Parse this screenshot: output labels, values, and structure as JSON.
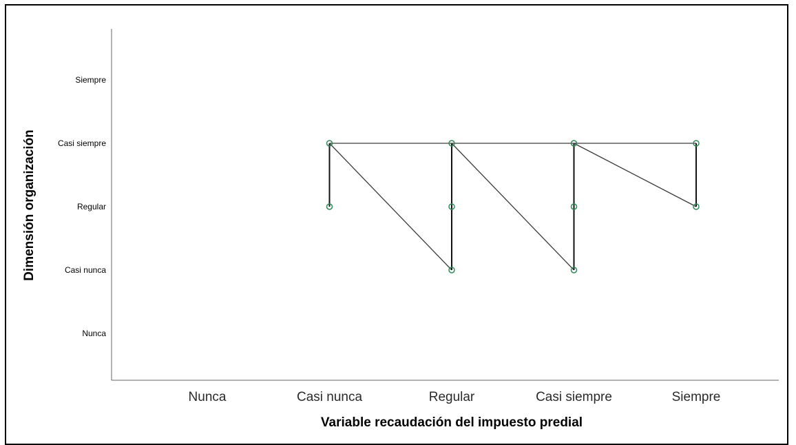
{
  "chart_data": {
    "type": "line",
    "xlabel": "Variable recaudación del impuesto predial",
    "ylabel": "Dimensión organización",
    "categories": [
      "Nunca",
      "Casi nunca",
      "Regular",
      "Casi siempre",
      "Siempre"
    ],
    "x_ticks": [
      "Nunca",
      "Casi nunca",
      "Regular",
      "Casi siempre",
      "Siempre"
    ],
    "y_ticks": [
      "Nunca",
      "Casi nunca",
      "Regular",
      "Casi siempre",
      "Siempre"
    ],
    "points": [
      {
        "x": "Casi nunca",
        "y": "Regular"
      },
      {
        "x": "Casi nunca",
        "y": "Casi siempre"
      },
      {
        "x": "Regular",
        "y": "Casi nunca"
      },
      {
        "x": "Regular",
        "y": "Regular"
      },
      {
        "x": "Regular",
        "y": "Casi siempre"
      },
      {
        "x": "Casi siempre",
        "y": "Casi nunca"
      },
      {
        "x": "Casi siempre",
        "y": "Regular"
      },
      {
        "x": "Casi siempre",
        "y": "Casi siempre"
      },
      {
        "x": "Siempre",
        "y": "Regular"
      },
      {
        "x": "Siempre",
        "y": "Casi siempre"
      }
    ],
    "path": [
      {
        "x": "Casi nunca",
        "y": "Regular"
      },
      {
        "x": "Casi nunca",
        "y": "Casi siempre"
      },
      {
        "x": "Regular",
        "y": "Casi nunca"
      },
      {
        "x": "Regular",
        "y": "Regular"
      },
      {
        "x": "Regular",
        "y": "Casi siempre"
      },
      {
        "x": "Casi siempre",
        "y": "Casi nunca"
      },
      {
        "x": "Casi siempre",
        "y": "Regular"
      },
      {
        "x": "Casi siempre",
        "y": "Casi siempre"
      },
      {
        "x": "Siempre",
        "y": "Regular"
      },
      {
        "x": "Siempre",
        "y": "Casi siempre"
      },
      {
        "x": "Casi nunca",
        "y": "Casi siempre"
      }
    ],
    "grid": false,
    "legend": "none",
    "colors": {
      "marker": "#2e8b57",
      "line": "#3a3a3a",
      "axis": "#666666"
    }
  }
}
